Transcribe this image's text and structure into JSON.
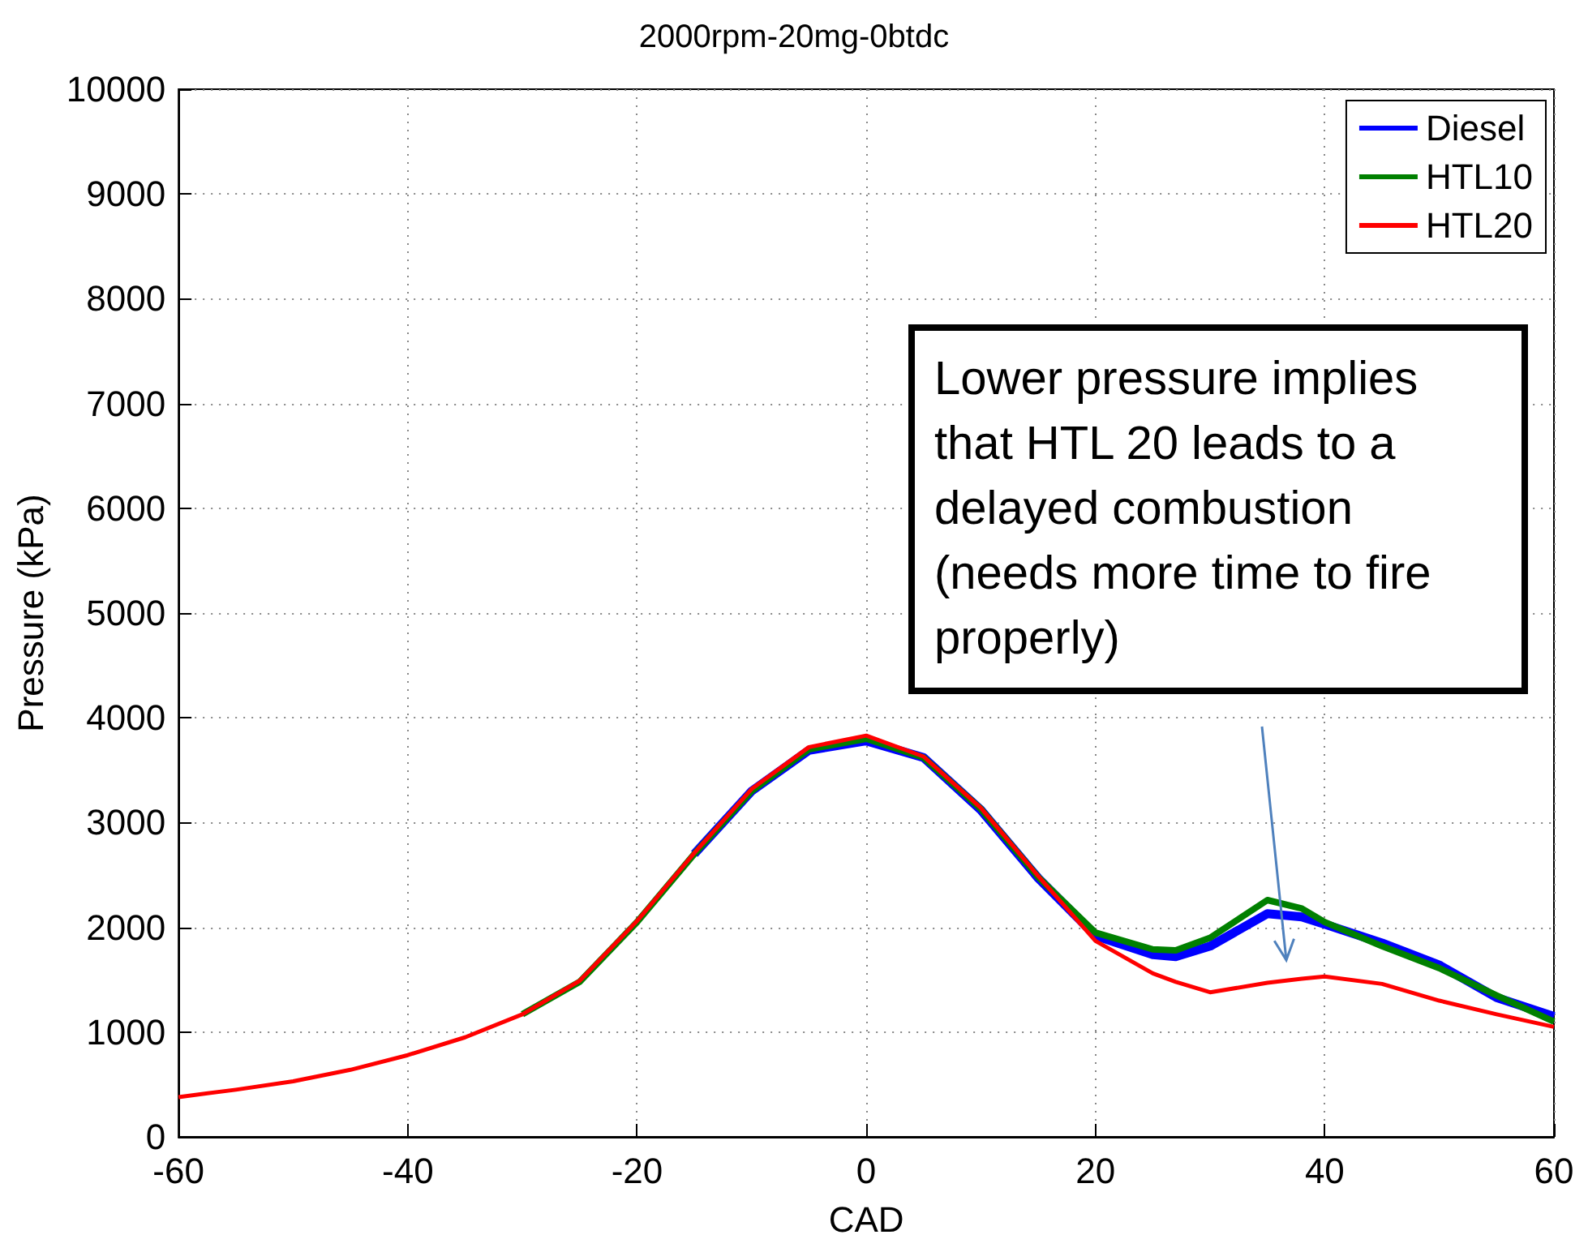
{
  "chart_data": {
    "type": "line",
    "title": "2000rpm-20mg-0btdc",
    "xlabel": "CAD",
    "ylabel": "Pressure (kPa)",
    "xlim": [
      -60,
      60
    ],
    "xticks": [
      -60,
      -40,
      -20,
      0,
      20,
      40,
      60
    ],
    "ylim": [
      0,
      10000
    ],
    "yticks": [
      0,
      1000,
      2000,
      3000,
      4000,
      5000,
      6000,
      7000,
      8000,
      9000,
      10000
    ],
    "grid": true,
    "legend": "top right",
    "marker": "none",
    "line_style": "solid",
    "annotations": [
      "Lower pressure implies that HTL 20 leads to a delayed combustion (needs more time to fire properly)"
    ],
    "x": [
      -60,
      -55,
      -50,
      -45,
      -40,
      -35,
      -30,
      -25,
      -20,
      -15,
      -10,
      -5,
      0,
      5,
      10,
      15,
      20,
      25,
      27,
      30,
      35,
      38,
      40,
      45,
      50,
      55,
      60
    ],
    "series": [
      {
        "name": "Diesel",
        "color": "#0000ff",
        "values": [
          null,
          null,
          null,
          null,
          null,
          null,
          null,
          null,
          null,
          2700,
          3300,
          3690,
          3780,
          3620,
          3120,
          2470,
          1920,
          1740,
          1720,
          1820,
          2130,
          2100,
          2030,
          1850,
          1640,
          1330,
          1150
        ]
      },
      {
        "name": "HTL10",
        "color": "#008000",
        "values": [
          null,
          null,
          null,
          null,
          null,
          null,
          1170,
          1480,
          2050,
          2700,
          3300,
          3700,
          3800,
          3620,
          3130,
          2480,
          1950,
          1790,
          1780,
          1900,
          2260,
          2180,
          2050,
          1820,
          1610,
          1350,
          1100
        ]
      },
      {
        "name": "HTL20",
        "color": "#ff0000",
        "values": [
          380,
          450,
          530,
          640,
          780,
          950,
          1170,
          1490,
          2060,
          2710,
          3320,
          3720,
          3830,
          3630,
          3140,
          2490,
          1870,
          1560,
          1480,
          1380,
          1470,
          1510,
          1530,
          1460,
          1300,
          1170,
          1050
        ]
      }
    ]
  }
}
